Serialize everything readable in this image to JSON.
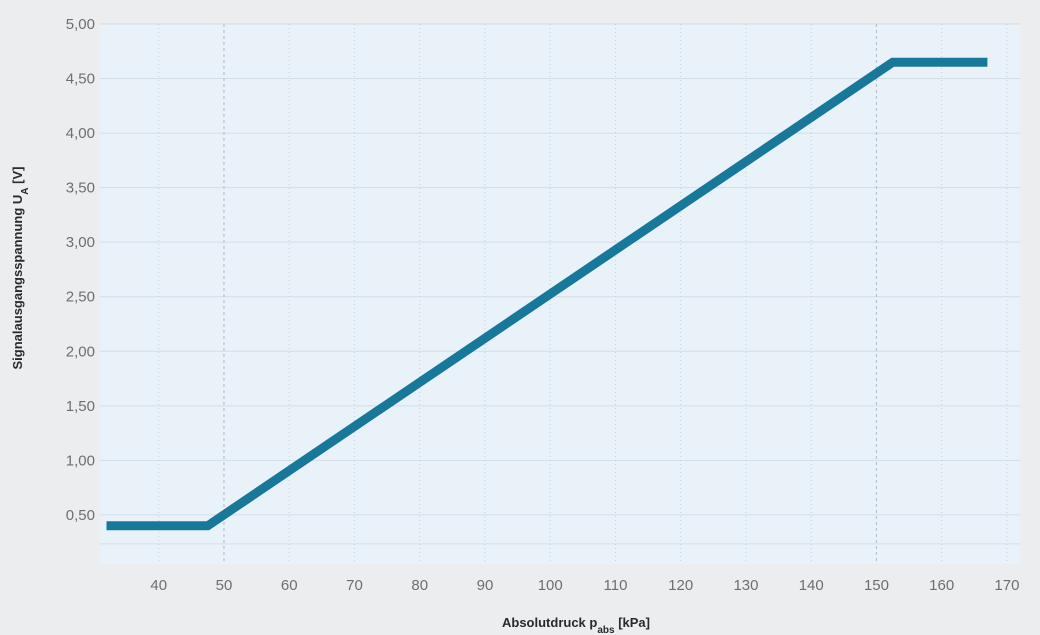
{
  "chart_data": {
    "type": "line",
    "xlabel_main": "Absolutdruck p",
    "xlabel_sub": "abs",
    "xlabel_unit": " [kPa]",
    "ylabel_main": "Signalausgangsspannung U",
    "ylabel_sub": "A",
    "ylabel_unit": " [V]",
    "xlim": [
      31,
      172
    ],
    "ylim": [
      0.05,
      5.0
    ],
    "xticks": [
      40,
      50,
      60,
      70,
      80,
      90,
      100,
      110,
      120,
      130,
      140,
      150,
      160,
      170
    ],
    "yticks": [
      0.5,
      1.0,
      1.5,
      2.0,
      2.5,
      3.0,
      3.5,
      4.0,
      4.5,
      5.0
    ],
    "ytick_labels": [
      "0,50",
      "1,00",
      "1,50",
      "2,00",
      "2,50",
      "3,00",
      "3,50",
      "4,00",
      "4,50",
      "5,00"
    ],
    "reference_lines_x": [
      50,
      150
    ],
    "grid": true,
    "series": [
      {
        "color": "#17789a",
        "points": [
          [
            32,
            0.4
          ],
          [
            47.5,
            0.4
          ],
          [
            152.5,
            4.65
          ],
          [
            167,
            4.65
          ]
        ]
      }
    ]
  }
}
